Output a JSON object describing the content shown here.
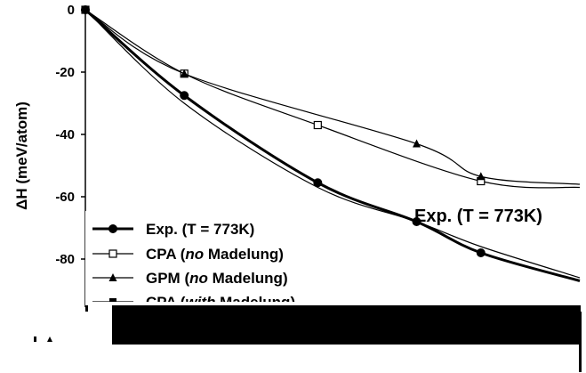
{
  "chart_data": {
    "type": "line",
    "title": "",
    "xlabel": "",
    "ylabel": "ΔH (meV/atom)",
    "ylim": [
      -95,
      0
    ],
    "yticks": [
      0,
      -20,
      -40,
      -60,
      -80
    ],
    "xlim": [
      0,
      1
    ],
    "grid": false,
    "legend_position": "bottom-left",
    "annotation": "Exp. (T = 773K)",
    "series": [
      {
        "name": "Exp. (T = 773K)",
        "marker": "filled-circle",
        "line": "thick",
        "x": [
          0,
          0.2,
          0.47,
          0.67,
          0.8,
          1.0
        ],
        "y": [
          0,
          -27.5,
          -55.5,
          -68.0,
          -78.0,
          -87.0
        ]
      },
      {
        "name": "CPA (no Madelung)",
        "marker": "open-square",
        "line": "thin",
        "x": [
          0,
          0.2,
          0.47,
          0.8,
          1.0
        ],
        "y": [
          0,
          -20.5,
          -37.0,
          -55.0,
          -57.0
        ]
      },
      {
        "name": "GPM (no Madelung)",
        "marker": "filled-triangle",
        "line": "thin",
        "x": [
          0,
          0.2,
          0.67,
          0.8,
          1.0
        ],
        "y": [
          0,
          -20.5,
          -43.0,
          -53.5,
          -56.0
        ]
      },
      {
        "name": "CPA (with Madelung)",
        "marker": "filled-square-half",
        "line": "thin",
        "x": [
          0,
          0.2,
          0.47,
          0.67,
          0.8,
          1.0
        ],
        "y": [
          0,
          -30.0,
          -57.0,
          -68.0,
          -76.0,
          -86.0
        ]
      }
    ]
  },
  "legend": {
    "items": [
      {
        "prefix": "Exp. (T = 773K)",
        "italic": "",
        "suffix": ""
      },
      {
        "prefix": "CPA (",
        "italic": "no",
        "suffix": " Madelung)"
      },
      {
        "prefix": "GPM (",
        "italic": "no",
        "suffix": " Madelung)"
      },
      {
        "prefix": "CPA (",
        "italic": "with",
        "suffix": " Madelung)"
      }
    ]
  }
}
